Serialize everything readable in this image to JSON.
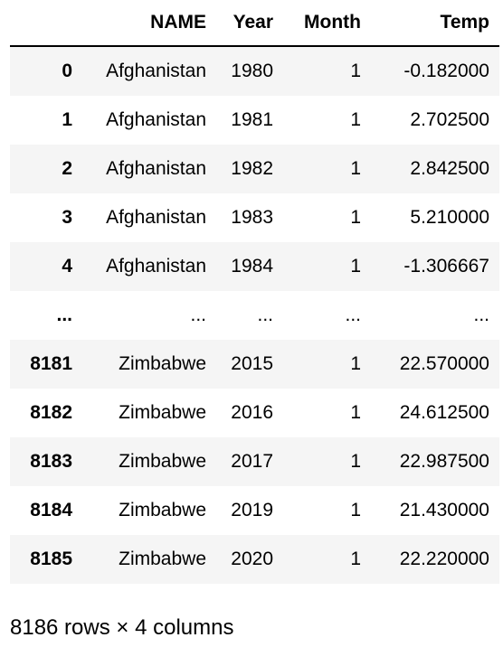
{
  "table": {
    "columns": {
      "index": "",
      "name": "NAME",
      "year": "Year",
      "month": "Month",
      "temp": "Temp"
    },
    "rows": [
      {
        "index": "0",
        "name": "Afghanistan",
        "year": "1980",
        "month": "1",
        "temp": "-0.182000"
      },
      {
        "index": "1",
        "name": "Afghanistan",
        "year": "1981",
        "month": "1",
        "temp": "2.702500"
      },
      {
        "index": "2",
        "name": "Afghanistan",
        "year": "1982",
        "month": "1",
        "temp": "2.842500"
      },
      {
        "index": "3",
        "name": "Afghanistan",
        "year": "1983",
        "month": "1",
        "temp": "5.210000"
      },
      {
        "index": "4",
        "name": "Afghanistan",
        "year": "1984",
        "month": "1",
        "temp": "-1.306667"
      },
      {
        "index": "...",
        "name": "...",
        "year": "...",
        "month": "...",
        "temp": "..."
      },
      {
        "index": "8181",
        "name": "Zimbabwe",
        "year": "2015",
        "month": "1",
        "temp": "22.570000"
      },
      {
        "index": "8182",
        "name": "Zimbabwe",
        "year": "2016",
        "month": "1",
        "temp": "24.612500"
      },
      {
        "index": "8183",
        "name": "Zimbabwe",
        "year": "2017",
        "month": "1",
        "temp": "22.987500"
      },
      {
        "index": "8184",
        "name": "Zimbabwe",
        "year": "2019",
        "month": "1",
        "temp": "21.430000"
      },
      {
        "index": "8185",
        "name": "Zimbabwe",
        "year": "2020",
        "month": "1",
        "temp": "22.220000"
      }
    ]
  },
  "footer": {
    "summary": "8186 rows × 4 columns"
  },
  "colors": {
    "stripe": "#f5f5f5",
    "background": "#ffffff",
    "text": "#000000",
    "header_rule": "#000000"
  }
}
